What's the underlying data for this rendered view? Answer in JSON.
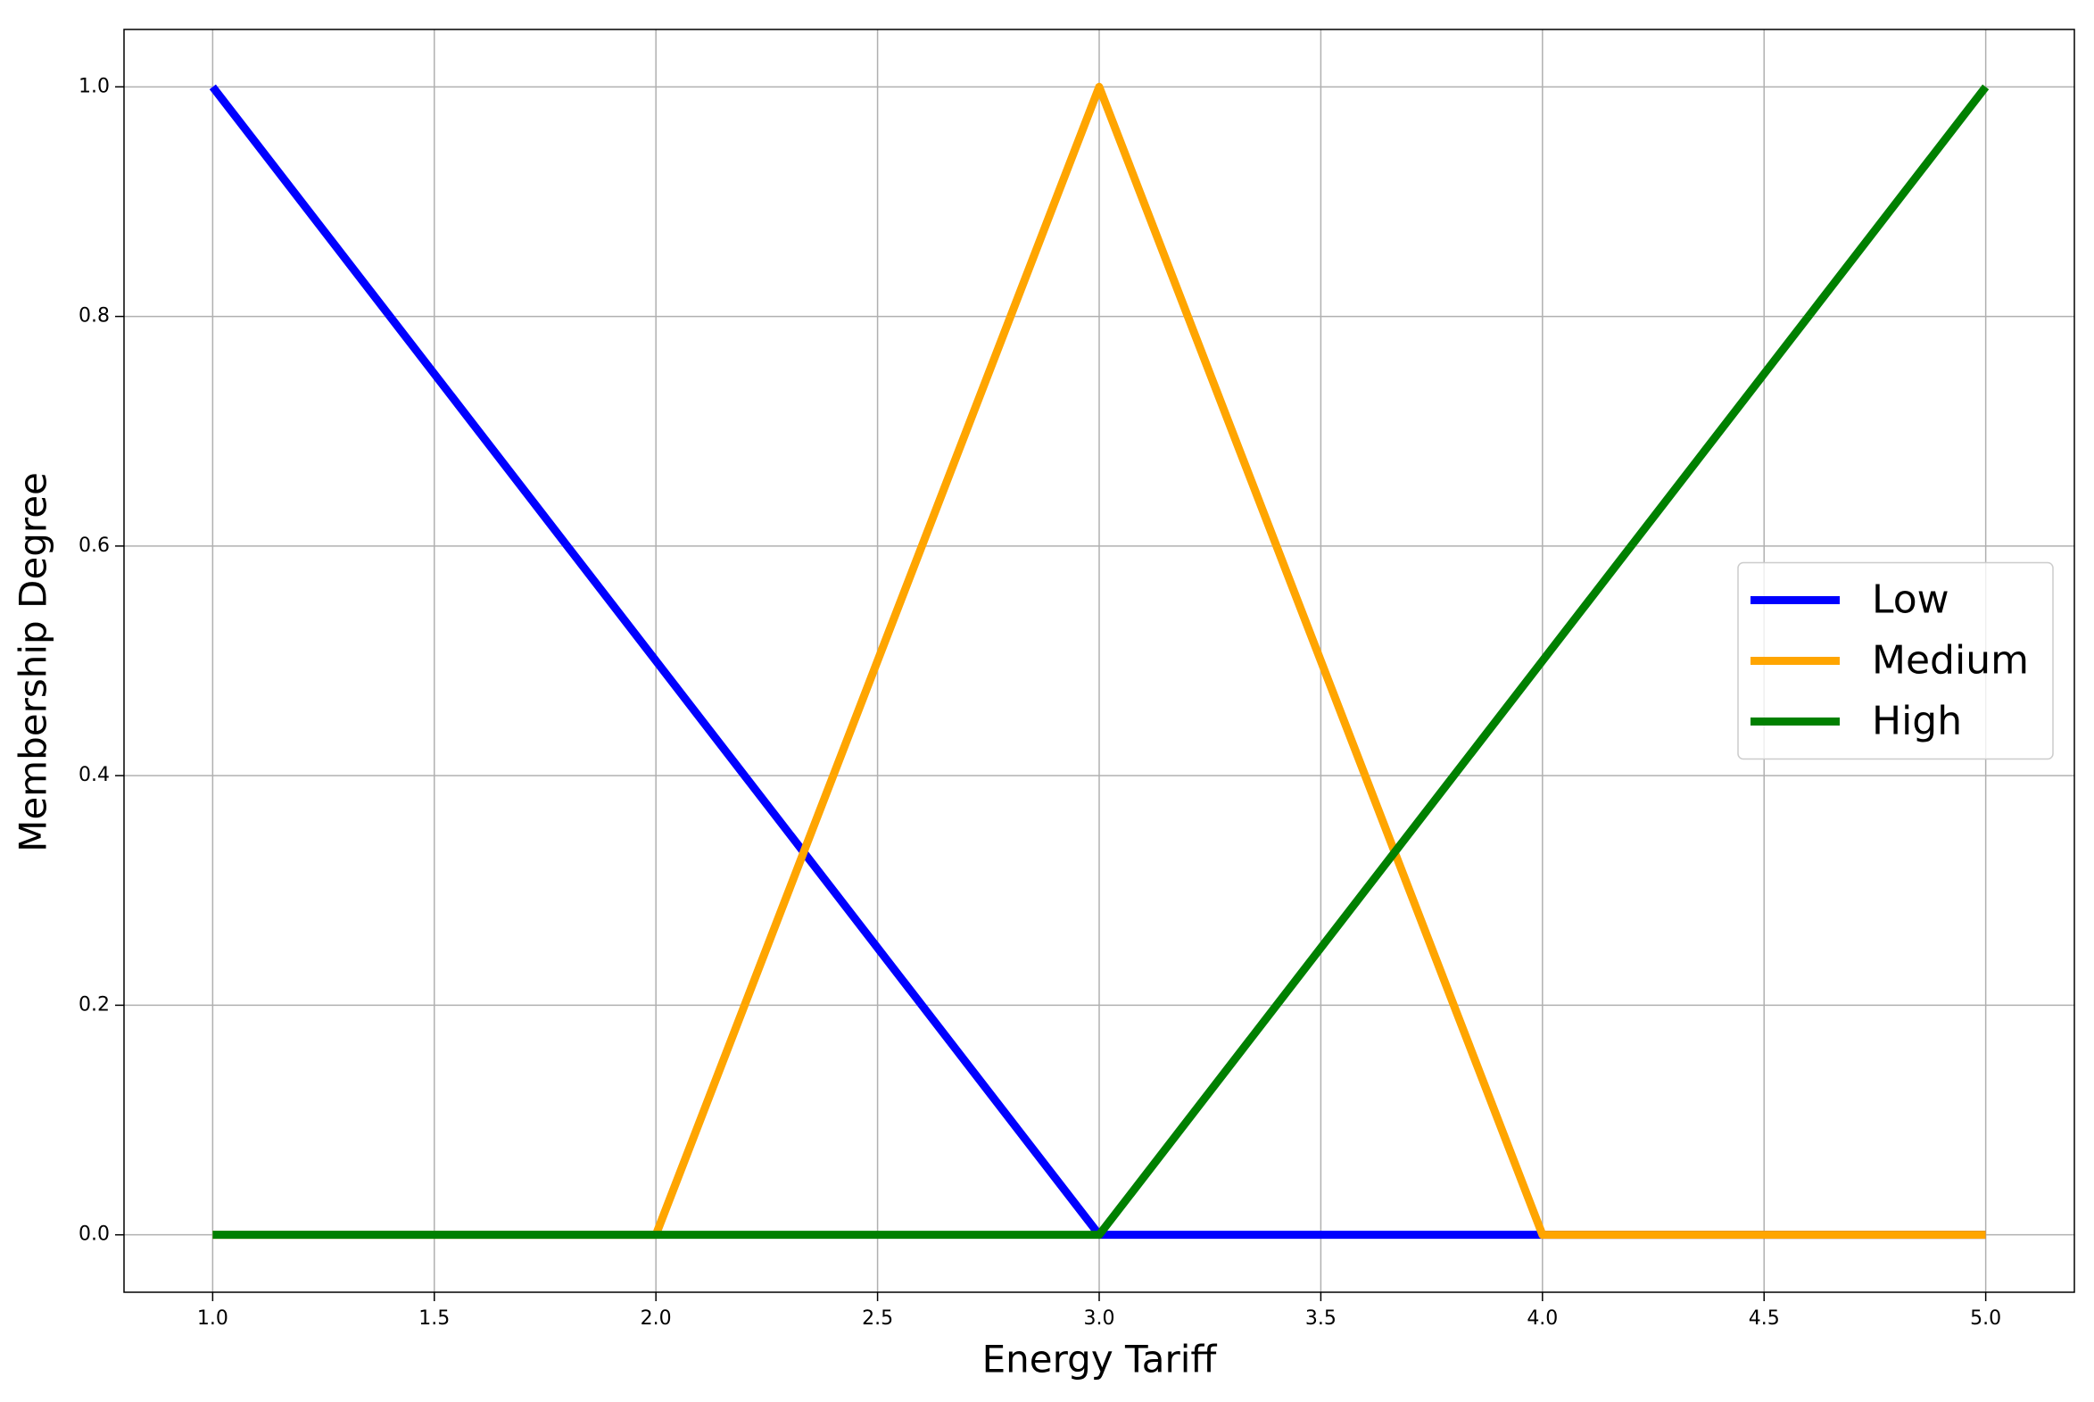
{
  "chart_data": {
    "type": "line",
    "xlabel": "Energy Tariff",
    "ylabel": "Membership Degree",
    "x": [
      1,
      2,
      3,
      4,
      5
    ],
    "series": [
      {
        "name": "Low",
        "color": "#0000ff",
        "values": [
          1,
          0.5,
          0,
          0,
          0
        ]
      },
      {
        "name": "Medium",
        "color": "#ffa500",
        "values": [
          0,
          0,
          1,
          0,
          0
        ]
      },
      {
        "name": "High",
        "color": "#008000",
        "values": [
          0,
          0,
          0,
          0.5,
          1
        ]
      }
    ],
    "xlim": [
      0.8,
      5.2
    ],
    "xticks": [
      {
        "value": 1,
        "label": "1.0"
      },
      {
        "value": 1.5,
        "label": "1.5"
      },
      {
        "value": 2,
        "label": "2.0"
      },
      {
        "value": 2.5,
        "label": "2.5"
      },
      {
        "value": 3,
        "label": "3.0"
      },
      {
        "value": 3.5,
        "label": "3.5"
      },
      {
        "value": 4,
        "label": "4.0"
      },
      {
        "value": 4.5,
        "label": "4.5"
      },
      {
        "value": 5,
        "label": "5.0"
      }
    ],
    "ylim": [
      -0.05,
      1.05
    ],
    "yticks": [
      {
        "value": 0,
        "label": "0.0"
      },
      {
        "value": 0.2,
        "label": "0.2"
      },
      {
        "value": 0.4,
        "label": "0.4"
      },
      {
        "value": 0.6,
        "label": "0.6"
      },
      {
        "value": 0.8,
        "label": "0.8"
      },
      {
        "value": 1,
        "label": "1.0"
      }
    ],
    "grid": true,
    "legend": "center right"
  }
}
